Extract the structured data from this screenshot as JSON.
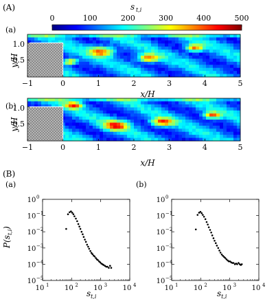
{
  "section_a": {
    "label": "(A)",
    "colorbar": {
      "title_main": "s",
      "title_sub": "t,i",
      "ticks": [
        "0",
        "100",
        "200",
        "300",
        "400",
        "500"
      ],
      "range": [
        0,
        500
      ],
      "colormap": [
        "#00007f",
        "#0000ff",
        "#007fff",
        "#00ffff",
        "#7fff7f",
        "#ffff00",
        "#ff7f00",
        "#ff0000",
        "#7f0000"
      ]
    },
    "panels": [
      {
        "label": "(a)",
        "ylabel": "y/H",
        "xlabel": "x/H",
        "yticks": [
          "1.0",
          "0.5"
        ],
        "xticks": [
          "−1",
          "0",
          "1",
          "2",
          "3",
          "4",
          "5"
        ],
        "hot_regions": [
          {
            "x": 1.1,
            "y": 0.75,
            "r": 0.35
          },
          {
            "x": 2.4,
            "y": 0.55,
            "r": 0.3
          },
          {
            "x": 3.7,
            "y": 0.85,
            "r": 0.25
          },
          {
            "x": 0.2,
            "y": 0.45,
            "r": 0.2
          }
        ]
      },
      {
        "label": "(b)",
        "ylabel": "y/H",
        "xlabel": "x/H",
        "yticks": [
          "1.0",
          "0.5"
        ],
        "xticks": [
          "−1",
          "0",
          "1",
          "2",
          "3",
          "4",
          "5"
        ],
        "hot_regions": [
          {
            "x": 1.5,
            "y": 0.45,
            "r": 0.35
          },
          {
            "x": 2.8,
            "y": 0.55,
            "r": 0.3
          },
          {
            "x": 4.2,
            "y": 0.75,
            "r": 0.25
          },
          {
            "x": 0.3,
            "y": 1.05,
            "r": 0.25
          }
        ]
      }
    ]
  },
  "section_b": {
    "label": "(B)",
    "ylabel_main": "P(s",
    "ylabel_sub": "t,i",
    "ylabel_close": ")",
    "xlabel_main": "s",
    "xlabel_sub": "t,i",
    "panels": [
      {
        "label": "(a)"
      },
      {
        "label": "(b)"
      }
    ]
  },
  "chart_data": [
    {
      "type": "scatter",
      "title": "(a)",
      "xlabel": "s_{t,i}",
      "ylabel": "P(s_{t,i})",
      "xscale": "log",
      "yscale": "log",
      "xlim": [
        10,
        10000
      ],
      "ylim": [
        1e-05,
        1
      ],
      "xticks": [
        "10^1",
        "10^2",
        "10^3",
        "10^4"
      ],
      "yticks": [
        "10^0",
        "10^-1",
        "10^-2",
        "10^-3",
        "10^-4",
        "10^-5"
      ],
      "x": [
        65,
        75,
        85,
        95,
        105,
        115,
        125,
        140,
        155,
        170,
        185,
        200,
        220,
        240,
        260,
        285,
        310,
        340,
        370,
        400,
        440,
        480,
        520,
        570,
        620,
        680,
        740,
        800,
        880,
        960,
        1050,
        1150,
        1250,
        1400,
        1550,
        1700,
        1900,
        2100,
        2300
      ],
      "y": [
        0.015,
        0.12,
        0.16,
        0.18,
        0.15,
        0.12,
        0.09,
        0.065,
        0.045,
        0.03,
        0.021,
        0.015,
        0.01,
        0.007,
        0.0048,
        0.0033,
        0.0024,
        0.0016,
        0.0012,
        0.0009,
        0.00065,
        0.0005,
        0.00042,
        0.00034,
        0.0003,
        0.00024,
        0.0002,
        0.00018,
        0.00015,
        0.00013,
        0.00011,
        0.0001,
        9e-05,
        8e-05,
        7e-05,
        7e-05,
        6e-05,
        8e-05,
        6e-05
      ]
    },
    {
      "type": "scatter",
      "title": "(b)",
      "xlabel": "s_{t,i}",
      "ylabel": "P(s_{t,i})",
      "xscale": "log",
      "yscale": "log",
      "xlim": [
        10,
        10000
      ],
      "ylim": [
        1e-05,
        1
      ],
      "xticks": [
        "10^1",
        "10^2",
        "10^3",
        "10^4"
      ],
      "yticks": [
        "10^0",
        "10^-1",
        "10^-2",
        "10^-3",
        "10^-4",
        "10^-5"
      ],
      "x": [
        68,
        78,
        88,
        98,
        108,
        118,
        130,
        145,
        160,
        175,
        190,
        210,
        230,
        250,
        275,
        300,
        330,
        360,
        400,
        440,
        480,
        530,
        580,
        640,
        700,
        770,
        850,
        930,
        1020,
        1120,
        1230,
        1350,
        1500,
        1650,
        1800,
        2000,
        2200,
        2400,
        2600
      ],
      "y": [
        0.014,
        0.11,
        0.15,
        0.17,
        0.14,
        0.11,
        0.085,
        0.06,
        0.04,
        0.028,
        0.019,
        0.013,
        0.009,
        0.006,
        0.004,
        0.0028,
        0.002,
        0.0014,
        0.001,
        0.0007,
        0.00052,
        0.0004,
        0.00033,
        0.00028,
        0.00024,
        0.0002,
        0.00017,
        0.00015,
        0.00015,
        0.00013,
        0.00012,
        0.00012,
        0.0001,
        0.00011,
        0.0001,
        0.00012,
        0.0001,
        9e-05,
        0.0001
      ]
    }
  ]
}
